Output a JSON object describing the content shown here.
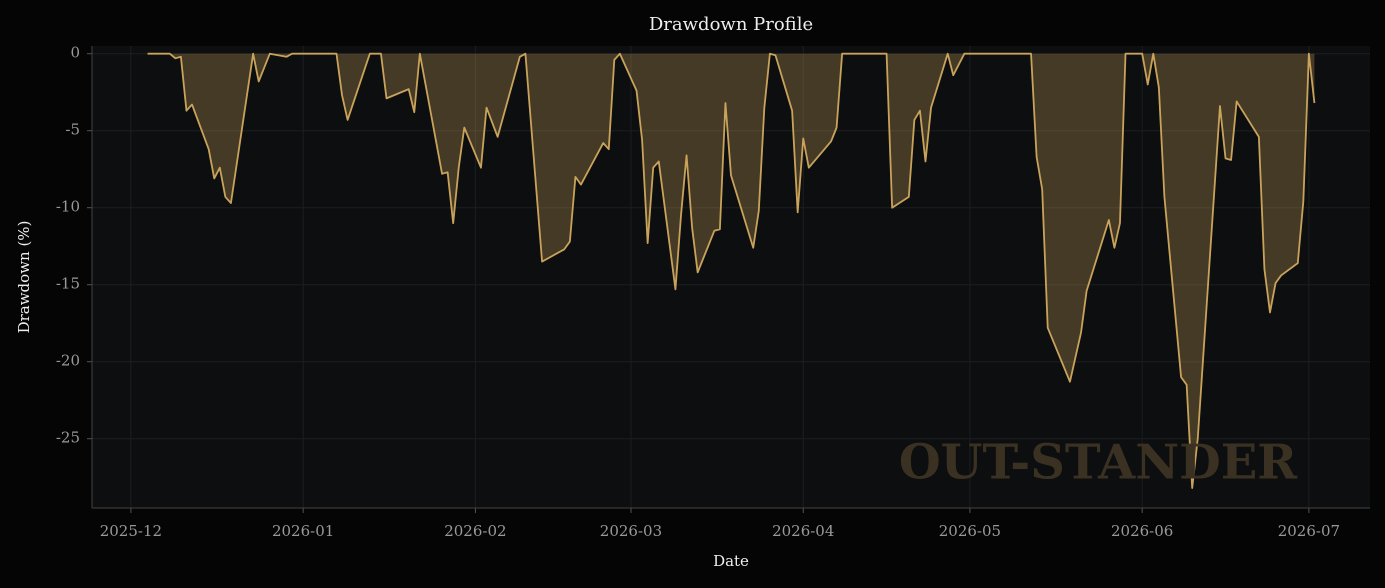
{
  "chart_data": {
    "type": "area",
    "title": "Drawdown Profile",
    "x_label": "Date",
    "y_label": "Drawdown (%)",
    "watermark": "OUT-STANDER",
    "color": "#c9a35a",
    "grid": true,
    "x": [
      "2025-12-04",
      "2025-12-08",
      "2025-12-09",
      "2025-12-10",
      "2025-12-11",
      "2025-12-12",
      "2025-12-15",
      "2025-12-16",
      "2025-12-17",
      "2025-12-18",
      "2025-12-19",
      "2025-12-23",
      "2025-12-24",
      "2025-12-26",
      "2025-12-29",
      "2025-12-30",
      "2026-01-07",
      "2026-01-08",
      "2026-01-09",
      "2026-01-13",
      "2026-01-15",
      "2026-01-16",
      "2026-01-20",
      "2026-01-21",
      "2026-01-22",
      "2026-01-26",
      "2026-01-27",
      "2026-01-28",
      "2026-01-29",
      "2026-01-30",
      "2026-02-02",
      "2026-02-03",
      "2026-02-05",
      "2026-02-09",
      "2026-02-10",
      "2026-02-13",
      "2026-02-17",
      "2026-02-18",
      "2026-02-19",
      "2026-02-20",
      "2026-02-24",
      "2026-02-25",
      "2026-02-26",
      "2026-02-27",
      "2026-03-02",
      "2026-03-03",
      "2026-03-04",
      "2026-03-05",
      "2026-03-06",
      "2026-03-09",
      "2026-03-10",
      "2026-03-11",
      "2026-03-12",
      "2026-03-13",
      "2026-03-16",
      "2026-03-17",
      "2026-03-18",
      "2026-03-19",
      "2026-03-23",
      "2026-03-24",
      "2026-03-25",
      "2026-03-26",
      "2026-03-27",
      "2026-03-30",
      "2026-03-31",
      "2026-04-01",
      "2026-04-02",
      "2026-04-06",
      "2026-04-07",
      "2026-04-08",
      "2026-04-16",
      "2026-04-17",
      "2026-04-20",
      "2026-04-21",
      "2026-04-22",
      "2026-04-23",
      "2026-04-24",
      "2026-04-27",
      "2026-04-28",
      "2026-04-30",
      "2026-05-12",
      "2026-05-13",
      "2026-05-14",
      "2026-05-15",
      "2026-05-19",
      "2026-05-21",
      "2026-05-22",
      "2026-05-26",
      "2026-05-27",
      "2026-05-28",
      "2026-05-29",
      "2026-06-01",
      "2026-06-02",
      "2026-06-03",
      "2026-06-04",
      "2026-06-05",
      "2026-06-08",
      "2026-06-09",
      "2026-06-10",
      "2026-06-11",
      "2026-06-15",
      "2026-06-16",
      "2026-06-17",
      "2026-06-18",
      "2026-06-22",
      "2026-06-23",
      "2026-06-24",
      "2026-06-25",
      "2026-06-26",
      "2026-06-29",
      "2026-06-30",
      "2026-07-01",
      "2026-07-02"
    ],
    "values": [
      0,
      0,
      -0.3,
      -0.2,
      -3.7,
      -3.3,
      -6.2,
      -8.1,
      -7.4,
      -9.3,
      -9.7,
      0,
      -1.8,
      0,
      -0.2,
      0,
      0,
      -2.7,
      -4.3,
      0,
      0,
      -2.9,
      -2.3,
      -3.8,
      0,
      -7.8,
      -7.7,
      -11.0,
      -7.4,
      -4.8,
      -7.4,
      -3.5,
      -5.4,
      -0.2,
      0,
      -13.5,
      -12.7,
      -12.2,
      -8.0,
      -8.5,
      -5.8,
      -6.2,
      -0.4,
      0,
      -2.4,
      -5.6,
      -12.3,
      -7.4,
      -7.0,
      -15.3,
      -10.5,
      -6.6,
      -11.3,
      -14.2,
      -11.5,
      -11.4,
      -3.2,
      -7.9,
      -12.6,
      -10.2,
      -3.5,
      0,
      -0.1,
      -3.7,
      -10.3,
      -5.5,
      -7.4,
      -5.7,
      -4.8,
      0,
      0,
      -10.0,
      -9.3,
      -4.3,
      -3.7,
      -7.0,
      -3.5,
      0,
      -1.4,
      0,
      0,
      -6.7,
      -8.8,
      -17.8,
      -21.3,
      -18.1,
      -15.4,
      -10.8,
      -12.6,
      -11.0,
      0,
      0,
      -2.0,
      0,
      -2.2,
      -9.3,
      -21.0,
      -21.5,
      -28.2,
      -25.0,
      -3.4,
      -6.8,
      -6.9,
      -3.1,
      -5.4,
      -14.0,
      -16.8,
      -14.9,
      -14.4,
      -13.6,
      -9.6,
      0,
      -3.2
    ],
    "xlim": [
      "2025-11-24",
      "2026-07-12"
    ],
    "xticks": [
      "2025-12",
      "2026-01",
      "2026-02",
      "2026-03",
      "2026-04",
      "2026-05",
      "2026-06",
      "2026-07"
    ],
    "ylim": [
      -29.5,
      0.5
    ],
    "yticks": [
      0,
      -5,
      -10,
      -15,
      -20,
      -25
    ]
  }
}
